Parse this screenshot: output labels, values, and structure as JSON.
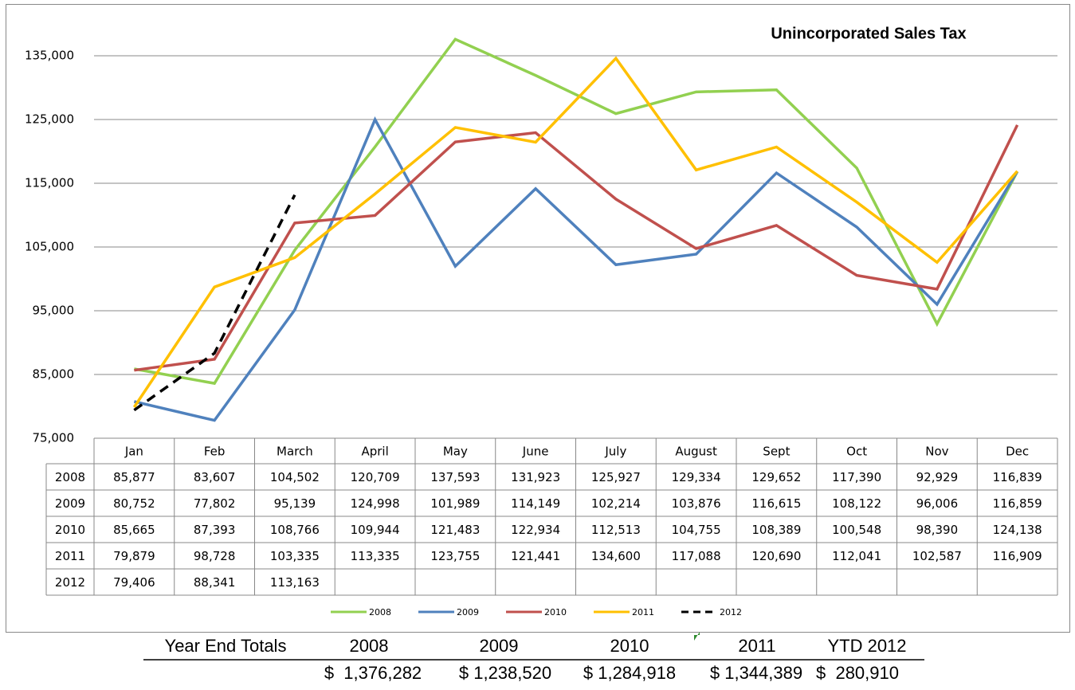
{
  "chart_data": {
    "type": "line",
    "title": "Unincorporated Sales Tax",
    "categories": [
      "Jan",
      "Feb",
      "March",
      "April",
      "May",
      "June",
      "July",
      "August",
      "Sept",
      "Oct",
      "Nov",
      "Dec"
    ],
    "ylim": [
      75000,
      140000
    ],
    "yticks": [
      {
        "value": 75000,
        "label": "75,000"
      },
      {
        "value": 85000,
        "label": "85,000"
      },
      {
        "value": 95000,
        "label": "95,000"
      },
      {
        "value": 105000,
        "label": "105,000"
      },
      {
        "value": 115000,
        "label": "115,000"
      },
      {
        "value": 125000,
        "label": "125,000"
      },
      {
        "value": 135000,
        "label": "135,000"
      }
    ],
    "grid": true,
    "legend": "bottom",
    "series": [
      {
        "name": "2008",
        "color": "#92d050",
        "style": "solid",
        "values": [
          85877,
          83607,
          104502,
          120709,
          137593,
          131923,
          125927,
          129334,
          129652,
          117390,
          92929,
          116839
        ],
        "value_labels": [
          "85,877",
          "83,607",
          "104,502",
          "120,709",
          "137,593",
          "131,923",
          "125,927",
          "129,334",
          "129,652",
          "117,390",
          "92,929",
          "116,839"
        ]
      },
      {
        "name": "2009",
        "color": "#4f81bd",
        "style": "solid",
        "values": [
          80752,
          77802,
          95139,
          124998,
          101989,
          114149,
          102214,
          103876,
          116615,
          108122,
          96006,
          116859
        ],
        "value_labels": [
          "80,752",
          "77,802",
          "95,139",
          "124,998",
          "101,989",
          "114,149",
          "102,214",
          "103,876",
          "116,615",
          "108,122",
          "96,006",
          "116,859"
        ]
      },
      {
        "name": "2010",
        "color": "#c0504d",
        "style": "solid",
        "values": [
          85665,
          87393,
          108766,
          109944,
          121483,
          122934,
          112513,
          104755,
          108389,
          100548,
          98390,
          124138
        ],
        "value_labels": [
          "85,665",
          "87,393",
          "108,766",
          "109,944",
          "121,483",
          "122,934",
          "112,513",
          "104,755",
          "108,389",
          "100,548",
          "98,390",
          "124,138"
        ]
      },
      {
        "name": "2011",
        "color": "#ffc000",
        "style": "solid",
        "values": [
          79879,
          98728,
          103335,
          113335,
          123755,
          121441,
          134600,
          117088,
          120690,
          112041,
          102587,
          116909
        ],
        "value_labels": [
          "79,879",
          "98,728",
          "103,335",
          "113,335",
          "123,755",
          "121,441",
          "134,600",
          "117,088",
          "120,690",
          "112,041",
          "102,587",
          "116,909"
        ]
      },
      {
        "name": "2012",
        "color": "#000000",
        "style": "dashed",
        "values": [
          79406,
          88341,
          113163,
          null,
          null,
          null,
          null,
          null,
          null,
          null,
          null,
          null
        ],
        "value_labels": [
          "79,406",
          "88,341",
          "113,163",
          null,
          null,
          null,
          null,
          null,
          null,
          null,
          null,
          null
        ]
      }
    ]
  },
  "summary": {
    "headers": [
      "Year End Totals",
      "2008",
      "2009",
      "2010",
      "2011",
      "YTD 2012"
    ],
    "totals": [
      "$  1,376,282",
      "$ 1,238,520",
      "$ 1,284,918",
      "$ 1,344,389",
      "$  280,910"
    ]
  }
}
